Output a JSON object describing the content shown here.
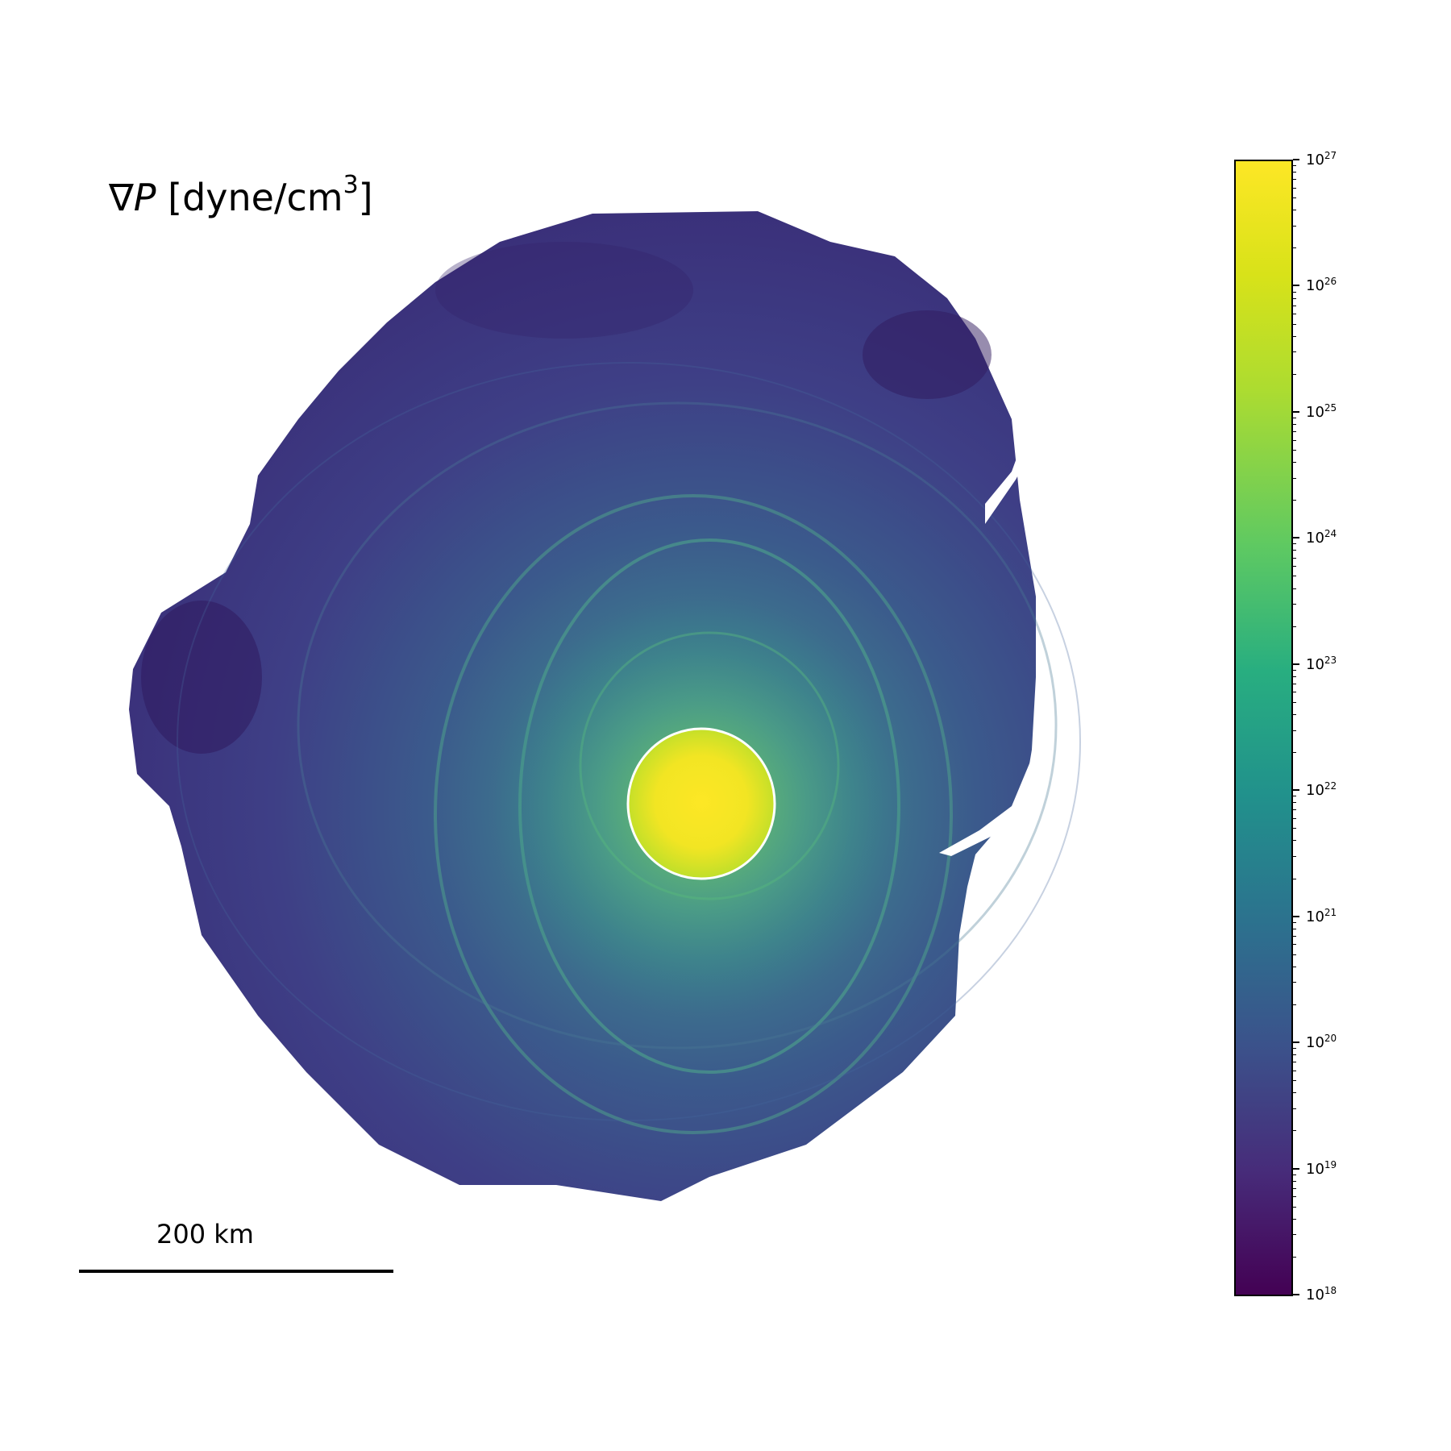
{
  "title": {
    "symbol": "∇",
    "variable": "P",
    "unit_prefix": " [dyne/cm",
    "unit_exp": "3",
    "unit_suffix": "]"
  },
  "scale_bar": {
    "label": "200 km"
  },
  "colorbar": {
    "scale": "log",
    "colormap": "viridis",
    "ticks": [
      {
        "base": "10",
        "exp": "27"
      },
      {
        "base": "10",
        "exp": "26"
      },
      {
        "base": "10",
        "exp": "25"
      },
      {
        "base": "10",
        "exp": "24"
      },
      {
        "base": "10",
        "exp": "23"
      },
      {
        "base": "10",
        "exp": "22"
      },
      {
        "base": "10",
        "exp": "21"
      },
      {
        "base": "10",
        "exp": "20"
      },
      {
        "base": "10",
        "exp": "19"
      },
      {
        "base": "10",
        "exp": "18"
      }
    ]
  },
  "colors": {
    "outer": "#3e3a84",
    "dark": "#2f1a5e",
    "mid": "#34608d",
    "ring": "#3f8f8c",
    "core": "#fde725",
    "core_edge": "#b8de29"
  }
}
